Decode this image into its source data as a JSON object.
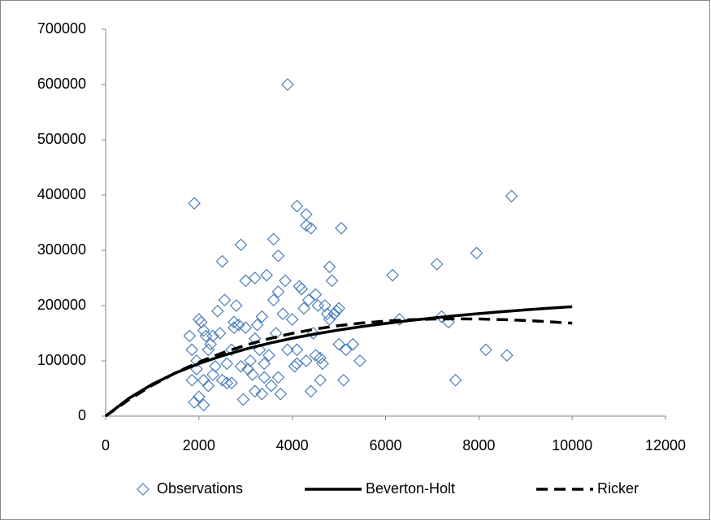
{
  "chart_data": {
    "type": "scatter",
    "xlim": [
      0,
      12000
    ],
    "xticks": [
      0,
      2000,
      4000,
      6000,
      8000,
      10000,
      12000
    ],
    "ylim": [
      0,
      700000
    ],
    "yticks": [
      0,
      100000,
      200000,
      300000,
      400000,
      500000,
      600000,
      700000
    ],
    "grid": false,
    "legend": "bottom",
    "series": [
      {
        "name": "Observations",
        "type": "scatter",
        "color": "#4a7ebb",
        "x": [
          1800,
          1850,
          1900,
          1850,
          1900,
          1950,
          2000,
          2050,
          2000,
          2100,
          2100,
          2150,
          2200,
          2250,
          2300,
          2350,
          2300,
          2400,
          2450,
          2500,
          2500,
          2550,
          2600,
          2700,
          2750,
          2750,
          2800,
          2850,
          2900,
          2900,
          2950,
          3000,
          3000,
          3050,
          3100,
          3150,
          3200,
          3200,
          3250,
          3300,
          3350,
          3350,
          3400,
          3450,
          3500,
          3550,
          3600,
          3600,
          3650,
          3700,
          3700,
          3750,
          3800,
          3850,
          3900,
          3900,
          4000,
          4050,
          4100,
          4100,
          4150,
          4200,
          4250,
          4300,
          4300,
          4350,
          4400,
          4400,
          4450,
          4500,
          4550,
          4600,
          4600,
          4650,
          4700,
          4750,
          4800,
          4850,
          4900,
          5000,
          5050,
          5000,
          5100,
          5150,
          5300,
          5450,
          6150,
          6300,
          7100,
          7200,
          7350,
          7500,
          7950,
          8150,
          8600,
          8700,
          2200,
          2600,
          3200,
          3700,
          4300,
          4800,
          1950,
          2100,
          4500,
          3400,
          2700,
          4100,
          4950
        ],
        "values": [
          145000,
          120000,
          385000,
          65000,
          25000,
          100000,
          175000,
          170000,
          35000,
          20000,
          155000,
          145000,
          120000,
          130000,
          75000,
          90000,
          145000,
          190000,
          150000,
          65000,
          280000,
          210000,
          60000,
          60000,
          160000,
          170000,
          200000,
          165000,
          310000,
          90000,
          30000,
          245000,
          160000,
          85000,
          100000,
          75000,
          250000,
          45000,
          165000,
          120000,
          180000,
          40000,
          95000,
          255000,
          110000,
          55000,
          320000,
          210000,
          150000,
          290000,
          225000,
          40000,
          185000,
          245000,
          600000,
          120000,
          175000,
          90000,
          380000,
          95000,
          235000,
          230000,
          195000,
          345000,
          365000,
          210000,
          340000,
          45000,
          150000,
          220000,
          200000,
          65000,
          105000,
          95000,
          200000,
          185000,
          270000,
          245000,
          185000,
          195000,
          340000,
          130000,
          65000,
          120000,
          130000,
          100000,
          255000,
          175000,
          275000,
          180000,
          170000,
          65000,
          295000,
          120000,
          110000,
          398000,
          55000,
          95000,
          140000,
          70000,
          100000,
          175000,
          85000,
          65000,
          110000,
          70000,
          120000,
          120000,
          190000
        ]
      },
      {
        "name": "Beverton-Holt",
        "type": "line",
        "color": "#000000",
        "dash": false,
        "x": [
          0,
          500,
          1000,
          1500,
          2000,
          2500,
          3000,
          3500,
          4000,
          4500,
          5000,
          5500,
          6000,
          6500,
          7000,
          7500,
          8000,
          8500,
          9000,
          9500,
          10000
        ],
        "values": [
          0,
          32200,
          57600,
          78100,
          95000,
          109200,
          121300,
          131700,
          140800,
          148700,
          155800,
          162100,
          167700,
          172800,
          177400,
          181600,
          185400,
          189000,
          192200,
          195200,
          198000
        ]
      },
      {
        "name": "Ricker",
        "type": "line",
        "color": "#000000",
        "dash": true,
        "x": [
          0,
          500,
          1000,
          1500,
          2000,
          2500,
          3000,
          3500,
          4000,
          4500,
          5000,
          5500,
          6000,
          6500,
          7000,
          7500,
          8000,
          8500,
          9000,
          9500,
          10000
        ],
        "values": [
          0,
          29800,
          55800,
          78400,
          97700,
          114300,
          128300,
          140000,
          149700,
          157600,
          163800,
          168500,
          172000,
          174300,
          175600,
          176000,
          175700,
          174600,
          173000,
          170800,
          168200
        ]
      }
    ]
  }
}
